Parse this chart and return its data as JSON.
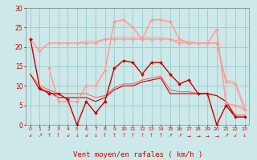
{
  "xlabel": "Vent moyen/en rafales ( km/h )",
  "background_color": "#cce8e8",
  "grid_color": "#99cccc",
  "x": [
    0,
    1,
    2,
    3,
    4,
    5,
    6,
    7,
    8,
    9,
    10,
    11,
    12,
    13,
    14,
    15,
    16,
    17,
    18,
    19,
    20,
    21,
    22,
    23
  ],
  "ylim": [
    0,
    30
  ],
  "yticks": [
    0,
    5,
    10,
    15,
    20,
    25,
    30
  ],
  "lines": [
    {
      "y": [
        22,
        9.5,
        8,
        8,
        6.5,
        0,
        6,
        3,
        6,
        14.5,
        16.5,
        16,
        13,
        16,
        16,
        13,
        10.5,
        11.5,
        8,
        8,
        0,
        5,
        2,
        2
      ],
      "color": "#cc0000",
      "lw": 1.0,
      "marker": "D",
      "ms": 2.0,
      "zorder": 5
    },
    {
      "y": [
        13,
        9,
        8.5,
        7,
        7,
        7,
        7,
        6,
        7,
        9,
        10,
        10,
        11,
        11.5,
        12,
        8,
        8,
        8,
        8,
        8,
        7.5,
        6,
        2,
        2
      ],
      "color": "#cc0000",
      "lw": 0.8,
      "marker": null,
      "ms": 0,
      "zorder": 4
    },
    {
      "y": [
        22,
        19,
        21,
        21,
        21,
        21,
        21,
        21,
        22,
        22,
        22,
        22,
        22,
        22,
        22,
        22,
        21,
        21,
        21,
        21,
        21,
        11,
        10.5,
        4
      ],
      "color": "#ff9999",
      "lw": 1.0,
      "marker": "D",
      "ms": 2.0,
      "zorder": 4
    },
    {
      "y": [
        22,
        19,
        21,
        21,
        21,
        21,
        21.5,
        21.5,
        22,
        22.5,
        22.5,
        22.5,
        22.5,
        22.5,
        22.5,
        22,
        21.5,
        21.5,
        21,
        21,
        21,
        11.5,
        11,
        4.5
      ],
      "color": "#ffaaaa",
      "lw": 0.8,
      "marker": null,
      "ms": 0,
      "zorder": 3
    },
    {
      "y": [
        null,
        null,
        14.5,
        6,
        6,
        6,
        10,
        10,
        14,
        26.5,
        27,
        25,
        22,
        27,
        27,
        26.5,
        22,
        21,
        21,
        21,
        24.5,
        5.5,
        5,
        4
      ],
      "color": "#ff9999",
      "lw": 1.0,
      "marker": "D",
      "ms": 2.0,
      "zorder": 4
    },
    {
      "y": [
        null,
        null,
        14,
        5.5,
        5.5,
        5.5,
        9.5,
        9.5,
        13.5,
        26,
        26.5,
        24.5,
        21.5,
        26.5,
        26.5,
        26,
        21.5,
        20.5,
        20.5,
        20.5,
        24,
        5,
        4.5,
        3.5
      ],
      "color": "#ffcccc",
      "lw": 0.8,
      "marker": null,
      "ms": 0,
      "zorder": 3
    },
    {
      "y": [
        13,
        10,
        9,
        8,
        8,
        8,
        8,
        7,
        7.5,
        9.5,
        10.5,
        10.5,
        11.5,
        12,
        12.5,
        9,
        8.5,
        8.5,
        8,
        8,
        7.5,
        6,
        2.5,
        2.5
      ],
      "color": "#ff6666",
      "lw": 0.8,
      "marker": null,
      "ms": 0,
      "zorder": 3
    }
  ],
  "wind_symbols": [
    "↙",
    "↗",
    "↑",
    "↑",
    "↙",
    "↓",
    "↙",
    "↓",
    "↑",
    "↑",
    "↑",
    "↑",
    "↑",
    "↑",
    "↑",
    "↗",
    "↗",
    "→",
    "→",
    "→",
    "→",
    "↗",
    "↙",
    "↓"
  ]
}
